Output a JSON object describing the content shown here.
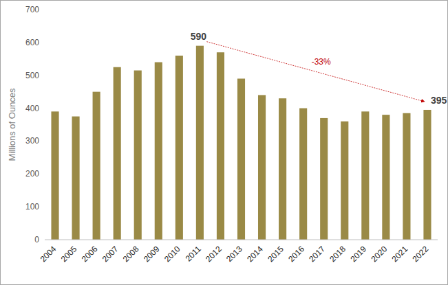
{
  "chart_data": {
    "type": "bar",
    "y_label": "Millions of Ounces",
    "categories": [
      "2004",
      "2005",
      "2006",
      "2007",
      "2008",
      "2009",
      "2010",
      "2011",
      "2012",
      "2013",
      "2014",
      "2015",
      "2016",
      "2017",
      "2018",
      "2019",
      "2020",
      "2021",
      "2022"
    ],
    "values": [
      390,
      375,
      450,
      525,
      515,
      540,
      560,
      590,
      570,
      490,
      440,
      430,
      400,
      370,
      360,
      390,
      380,
      385,
      395
    ],
    "value_labels": [
      null,
      null,
      null,
      null,
      null,
      null,
      null,
      "590",
      null,
      null,
      null,
      null,
      null,
      null,
      null,
      null,
      null,
      null,
      "395"
    ],
    "color": "#9a8a46",
    "ylim": [
      0,
      700
    ],
    "yticks": [
      0,
      100,
      200,
      300,
      400,
      500,
      600,
      700
    ],
    "grid": false,
    "annotations": [
      {
        "text": "-33%",
        "from": "2011",
        "to": "2022"
      }
    ]
  }
}
